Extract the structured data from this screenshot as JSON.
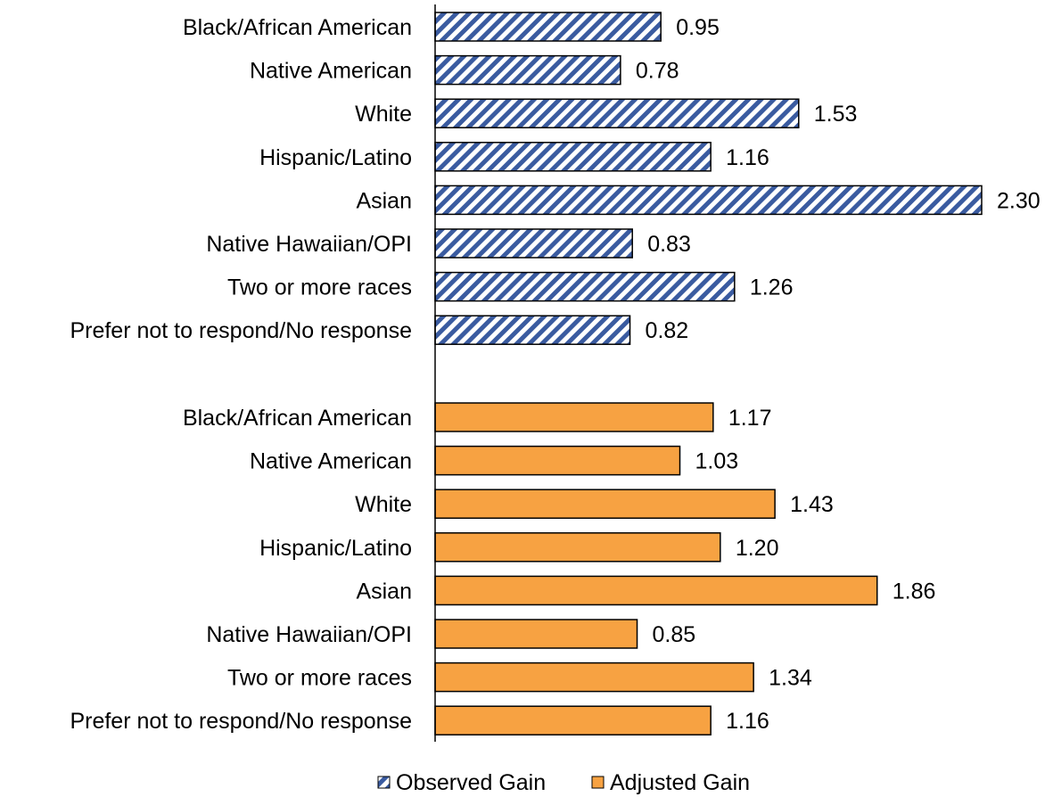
{
  "chart_data": {
    "type": "bar",
    "orientation": "horizontal",
    "categories": [
      "Black/African American",
      "Native American",
      "White",
      "Hispanic/Latino",
      "Asian",
      "Native Hawaiian/OPI",
      "Two or more races",
      "Prefer not to respond/No response"
    ],
    "series": [
      {
        "name": "Observed Gain",
        "values": [
          0.95,
          0.78,
          1.53,
          1.16,
          2.3,
          0.83,
          1.26,
          0.82
        ],
        "labels": [
          "0.95",
          "0.78",
          "1.53",
          "1.16",
          "2.30",
          "0.83",
          "1.26",
          "0.82"
        ],
        "color": "#3A5BA0",
        "pattern": "diagonal-stripes"
      },
      {
        "name": "Adjusted Gain",
        "values": [
          1.17,
          1.03,
          1.43,
          1.2,
          1.86,
          0.85,
          1.34,
          1.16
        ],
        "labels": [
          "1.17",
          "1.03",
          "1.43",
          "1.20",
          "1.86",
          "0.85",
          "1.34",
          "1.16"
        ],
        "color": "#F7A242",
        "pattern": "solid"
      }
    ],
    "xlim": [
      0,
      2.3
    ],
    "grid": false,
    "legend": "bottom"
  }
}
